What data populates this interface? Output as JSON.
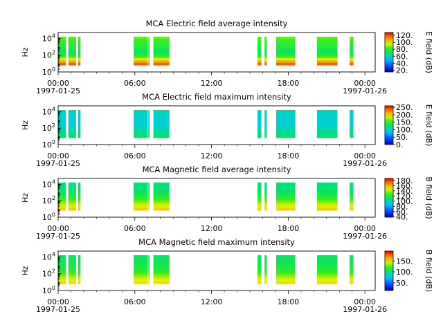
{
  "chart_data": [
    {
      "type": "heatmap",
      "title": "MCA  Electric field average intensity",
      "ylabel": "Hz",
      "yscale": "log",
      "yticks": [
        "10^0",
        "10^2",
        "10^4"
      ],
      "xticks": [
        "00:00",
        "06:00",
        "12:00",
        "18:00",
        "00:00"
      ],
      "date_start": "1997-01-25",
      "date_end": "1997-01-26",
      "colorbar_label": "E field (dB)",
      "colorbar_ticks": [
        "20.",
        "40.",
        "60.",
        "80.",
        "100.",
        "120."
      ],
      "colorbar_range": [
        15,
        128
      ],
      "data_intervals_hours": [
        [
          0.0,
          0.6
        ],
        [
          0.8,
          1.4
        ],
        [
          1.55,
          1.75
        ],
        [
          5.9,
          7.0
        ],
        [
          7.05,
          7.15
        ],
        [
          7.45,
          8.7
        ],
        [
          15.6,
          15.9
        ],
        [
          16.15,
          16.3
        ],
        [
          17.05,
          18.55
        ],
        [
          20.25,
          21.85
        ],
        [
          22.8,
          23.1
        ]
      ],
      "level_profile": [
        85,
        82,
        80,
        78,
        76,
        74,
        72,
        75,
        82,
        95,
        108,
        118
      ]
    },
    {
      "type": "heatmap",
      "title": "MCA  Electric field maximum intensity",
      "ylabel": "Hz",
      "yscale": "log",
      "yticks": [
        "10^0",
        "10^2",
        "10^4"
      ],
      "xticks": [
        "00:00",
        "06:00",
        "12:00",
        "18:00",
        "00:00"
      ],
      "date_start": "1997-01-25",
      "date_end": "1997-01-26",
      "colorbar_label": "E field (dB)",
      "colorbar_ticks": [
        "0.",
        "50.",
        "100.",
        "150.",
        "200.",
        "250."
      ],
      "colorbar_range": [
        0,
        260
      ],
      "data_intervals_hours": [
        [
          0.0,
          0.6
        ],
        [
          0.8,
          1.4
        ],
        [
          1.55,
          1.75
        ],
        [
          5.9,
          7.0
        ],
        [
          7.05,
          7.15
        ],
        [
          7.45,
          8.7
        ],
        [
          15.6,
          15.9
        ],
        [
          16.15,
          16.3
        ],
        [
          17.05,
          18.55
        ],
        [
          20.25,
          21.85
        ],
        [
          22.8,
          23.1
        ]
      ],
      "level_profile": [
        105,
        100,
        98,
        96,
        95,
        94,
        96,
        100,
        108,
        115,
        120,
        125
      ]
    },
    {
      "type": "heatmap",
      "title": "MCA  Magnetic field average intensity",
      "ylabel": "Hz",
      "yscale": "log",
      "yticks": [
        "10^0",
        "10^2",
        "10^4"
      ],
      "xticks": [
        "00:00",
        "06:00",
        "12:00",
        "18:00",
        "00:00"
      ],
      "date_start": "1997-01-25",
      "date_end": "1997-01-26",
      "colorbar_label": "B field (dB)",
      "colorbar_ticks": [
        "40.",
        "60.",
        "80.",
        "100.",
        "120.",
        "140.",
        "160.",
        "180."
      ],
      "colorbar_range": [
        38,
        188
      ],
      "data_intervals_hours": [
        [
          0.0,
          0.6
        ],
        [
          0.8,
          1.4
        ],
        [
          1.55,
          1.75
        ],
        [
          5.9,
          7.0
        ],
        [
          7.05,
          7.15
        ],
        [
          7.45,
          8.7
        ],
        [
          15.6,
          15.9
        ],
        [
          16.15,
          16.3
        ],
        [
          17.05,
          18.55
        ],
        [
          20.25,
          21.85
        ],
        [
          22.8,
          23.1
        ]
      ],
      "level_profile": [
        108,
        108,
        110,
        112,
        114,
        118,
        122,
        128,
        135,
        142,
        148,
        152
      ]
    },
    {
      "type": "heatmap",
      "title": "MCA  Magnetic field maximum intensity",
      "ylabel": "Hz",
      "yscale": "log",
      "yticks": [
        "10^0",
        "10^2",
        "10^4"
      ],
      "xticks": [
        "00:00",
        "06:00",
        "12:00",
        "18:00",
        "00:00"
      ],
      "date_start": "1997-01-25",
      "date_end": "1997-01-26",
      "colorbar_label": "B field (dB)",
      "colorbar_ticks": [
        "50.",
        "100.",
        "150."
      ],
      "colorbar_range": [
        15,
        195
      ],
      "data_intervals_hours": [
        [
          0.0,
          0.6
        ],
        [
          0.8,
          1.4
        ],
        [
          1.55,
          1.75
        ],
        [
          5.9,
          7.0
        ],
        [
          7.05,
          7.15
        ],
        [
          7.45,
          8.7
        ],
        [
          15.6,
          15.9
        ],
        [
          16.15,
          16.3
        ],
        [
          17.05,
          18.55
        ],
        [
          20.25,
          21.85
        ],
        [
          22.8,
          23.1
        ]
      ],
      "level_profile": [
        105,
        105,
        106,
        108,
        110,
        112,
        116,
        122,
        130,
        138,
        145,
        150
      ]
    }
  ]
}
